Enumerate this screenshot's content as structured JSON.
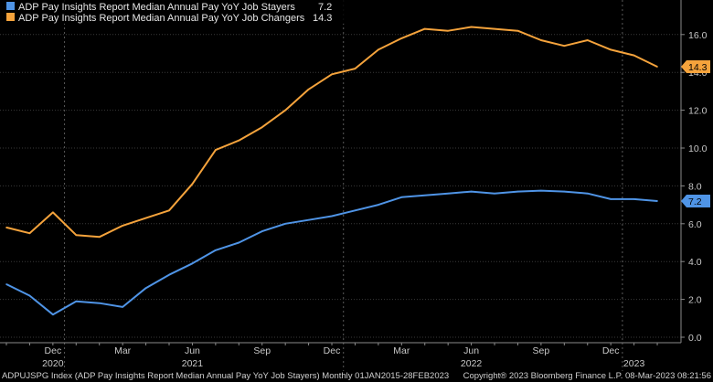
{
  "chart_data": {
    "type": "line",
    "title": "",
    "xlabel": "",
    "ylabel": "",
    "ylim": [
      0,
      17.5
    ],
    "yticks": [
      "0.0",
      "2.0",
      "4.0",
      "6.0",
      "8.0",
      "10.0",
      "12.0",
      "14.0",
      "16.0"
    ],
    "ytick_values": [
      0,
      2,
      4,
      6,
      8,
      10,
      12,
      14,
      16
    ],
    "grid": true,
    "legend_position": "top-left",
    "x_months": [
      "Oct 2020",
      "Nov 2020",
      "Dec 2020",
      "Jan 2021",
      "Feb 2021",
      "Mar 2021",
      "Apr 2021",
      "May 2021",
      "Jun 2021",
      "Jul 2021",
      "Aug 2021",
      "Sep 2021",
      "Oct 2021",
      "Nov 2021",
      "Dec 2021",
      "Jan 2022",
      "Feb 2022",
      "Mar 2022",
      "Apr 2022",
      "May 2022",
      "Jun 2022",
      "Jul 2022",
      "Aug 2022",
      "Sep 2022",
      "Oct 2022",
      "Nov 2022",
      "Dec 2022",
      "Jan 2023",
      "Feb 2023"
    ],
    "month_ticks": [
      {
        "label": "Dec",
        "month": "Dec 2020"
      },
      {
        "label": "Mar",
        "month": "Mar 2021"
      },
      {
        "label": "Jun",
        "month": "Jun 2021"
      },
      {
        "label": "Sep",
        "month": "Sep 2021"
      },
      {
        "label": "Dec",
        "month": "Dec 2021"
      },
      {
        "label": "Mar",
        "month": "Mar 2022"
      },
      {
        "label": "Jun",
        "month": "Jun 2022"
      },
      {
        "label": "Sep",
        "month": "Sep 2022"
      },
      {
        "label": "Dec",
        "month": "Dec 2022"
      }
    ],
    "year_labels": [
      {
        "label": "2020",
        "month": "Dec 2020"
      },
      {
        "label": "2021",
        "month": "Jun 2021"
      },
      {
        "label": "2022",
        "month": "Jun 2022"
      },
      {
        "label": "2023",
        "month": "Jan 2023"
      }
    ],
    "year_dividers": [
      "Jan 2021",
      "Jan 2022",
      "Jan 2023"
    ],
    "series": [
      {
        "name": "ADP Pay Insights Report Median Annual Pay YoY Job Stayers",
        "last_value": "7.2",
        "color": "#4f94e6",
        "values": [
          2.8,
          2.2,
          1.2,
          1.9,
          1.8,
          1.6,
          2.6,
          3.3,
          3.9,
          4.6,
          5.0,
          5.6,
          6.0,
          6.2,
          6.4,
          6.7,
          7.0,
          7.4,
          7.5,
          7.6,
          7.7,
          7.6,
          7.7,
          7.75,
          7.7,
          7.6,
          7.3,
          7.3,
          7.2
        ]
      },
      {
        "name": "ADP Pay Insights Report Median Annual Pay YoY Job Changers",
        "last_value": "14.3",
        "color": "#f5a33c",
        "values": [
          5.8,
          5.5,
          6.6,
          5.4,
          5.3,
          5.9,
          6.3,
          6.7,
          8.1,
          9.9,
          10.4,
          11.1,
          12.0,
          13.1,
          13.9,
          14.2,
          15.2,
          15.8,
          16.3,
          16.2,
          16.4,
          16.3,
          16.2,
          15.7,
          15.4,
          15.7,
          15.2,
          14.9,
          14.3
        ]
      }
    ]
  },
  "footer": {
    "left": "ADPUJSPG Index (ADP Pay Insights Report Median Annual Pay YoY Job Stayers)  Monthly 01JAN2015-28FEB2023",
    "right": "Copyright® 2023 Bloomberg Finance L.P.   08-Mar-2023 08:21:56"
  }
}
